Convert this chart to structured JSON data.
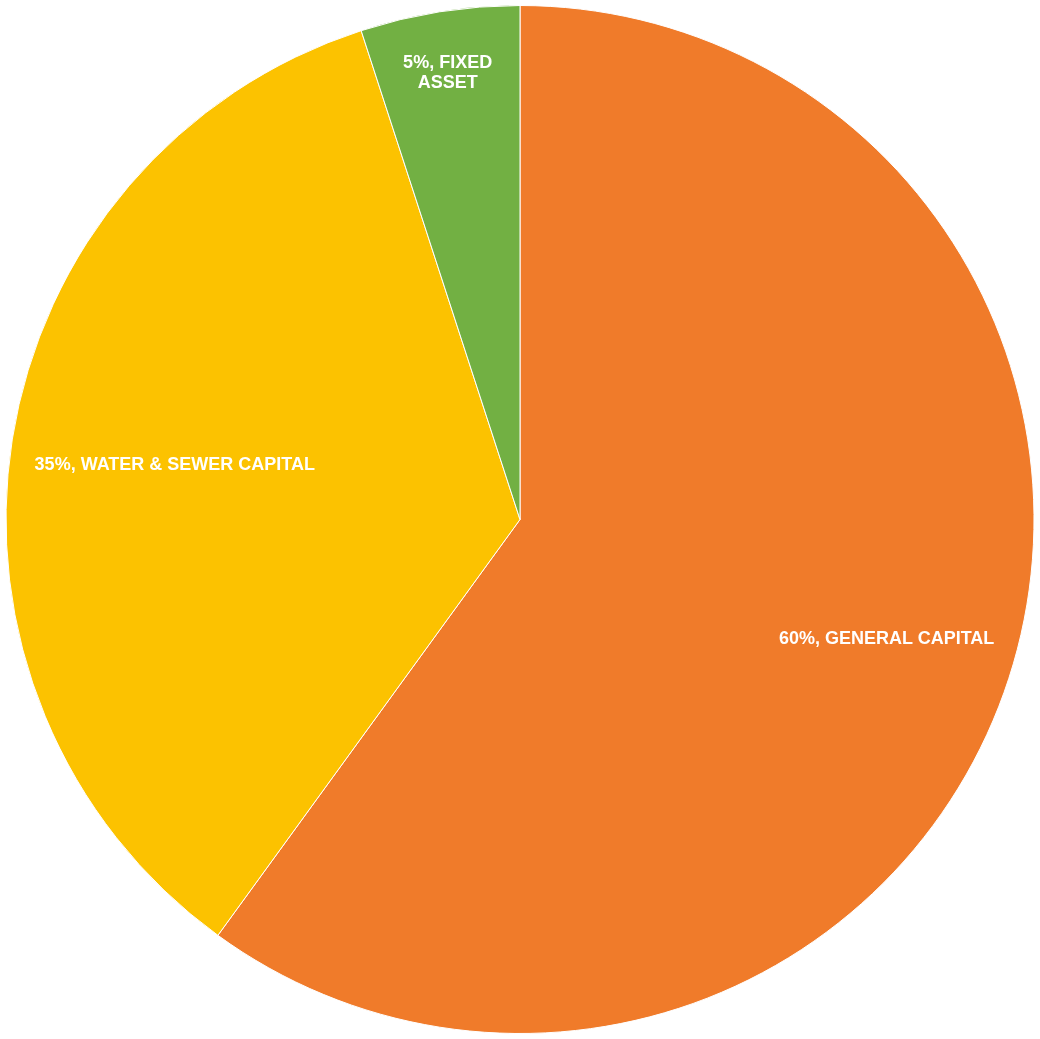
{
  "chart_data": {
    "type": "pie",
    "categories": [
      "GENERAL CAPITAL",
      "WATER & SEWER CAPITAL",
      "FIXED ASSET"
    ],
    "values": [
      60,
      35,
      5
    ],
    "colors": [
      "#f07b2a",
      "#fcc200",
      "#72b043"
    ],
    "value_labels": [
      "60%",
      "35%",
      "5%"
    ],
    "legend": false
  }
}
